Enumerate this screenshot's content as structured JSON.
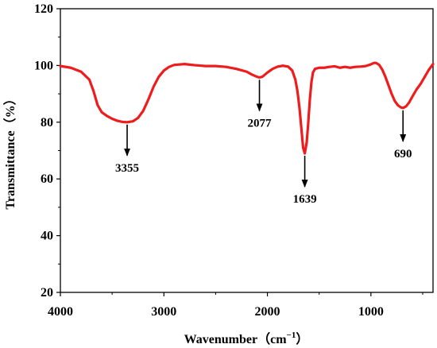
{
  "chart_data": {
    "type": "line",
    "title": "",
    "xlabel": "Wavenumber（cm",
    "xlabel_sup": "−1",
    "xlabel_close": "）",
    "ylabel": "Transmittance（%）",
    "xlim": [
      4000,
      400
    ],
    "ylim": [
      20,
      120
    ],
    "x_ticks": [
      "4000",
      "3000",
      "2000",
      "1000"
    ],
    "y_ticks": [
      "20",
      "40",
      "60",
      "80",
      "100",
      "120"
    ],
    "grid": false,
    "legend": "none",
    "series": [
      {
        "color": "#ee1c1c",
        "points": [
          [
            4000,
            99.8
          ],
          [
            3900,
            99.2
          ],
          [
            3800,
            97.8
          ],
          [
            3720,
            95
          ],
          [
            3680,
            91
          ],
          [
            3640,
            86
          ],
          [
            3600,
            83.5
          ],
          [
            3550,
            82.2
          ],
          [
            3500,
            81.2
          ],
          [
            3450,
            80.5
          ],
          [
            3400,
            80.1
          ],
          [
            3355,
            80.0
          ],
          [
            3300,
            80.3
          ],
          [
            3250,
            81.5
          ],
          [
            3200,
            84
          ],
          [
            3150,
            88
          ],
          [
            3100,
            92.5
          ],
          [
            3050,
            96
          ],
          [
            3000,
            98.2
          ],
          [
            2950,
            99.5
          ],
          [
            2900,
            100.2
          ],
          [
            2800,
            100.5
          ],
          [
            2700,
            100.1
          ],
          [
            2600,
            99.8
          ],
          [
            2500,
            99.8
          ],
          [
            2400,
            99.5
          ],
          [
            2300,
            98.8
          ],
          [
            2200,
            97.8
          ],
          [
            2150,
            96.8
          ],
          [
            2100,
            96.0
          ],
          [
            2077,
            95.8
          ],
          [
            2050,
            96.0
          ],
          [
            2000,
            97.5
          ],
          [
            1950,
            98.8
          ],
          [
            1900,
            99.6
          ],
          [
            1850,
            99.9
          ],
          [
            1800,
            99.6
          ],
          [
            1760,
            98.2
          ],
          [
            1730,
            95
          ],
          [
            1710,
            91
          ],
          [
            1690,
            85
          ],
          [
            1670,
            77
          ],
          [
            1655,
            71
          ],
          [
            1639,
            69.0
          ],
          [
            1620,
            73
          ],
          [
            1605,
            80
          ],
          [
            1590,
            88
          ],
          [
            1575,
            94
          ],
          [
            1560,
            97.5
          ],
          [
            1540,
            98.8
          ],
          [
            1500,
            99.2
          ],
          [
            1450,
            99.2
          ],
          [
            1400,
            99.5
          ],
          [
            1350,
            99.7
          ],
          [
            1300,
            99.2
          ],
          [
            1250,
            99.5
          ],
          [
            1200,
            99.2
          ],
          [
            1150,
            99.5
          ],
          [
            1100,
            99.6
          ],
          [
            1050,
            99.8
          ],
          [
            1000,
            100.4
          ],
          [
            970,
            100.9
          ],
          [
            950,
            100.9
          ],
          [
            920,
            100.2
          ],
          [
            890,
            98.5
          ],
          [
            860,
            96
          ],
          [
            830,
            93
          ],
          [
            800,
            90
          ],
          [
            770,
            87.5
          ],
          [
            740,
            86
          ],
          [
            710,
            85.2
          ],
          [
            690,
            85.0
          ],
          [
            660,
            85.6
          ],
          [
            630,
            87
          ],
          [
            600,
            89
          ],
          [
            560,
            91.5
          ],
          [
            520,
            93.5
          ],
          [
            480,
            96
          ],
          [
            440,
            98.5
          ],
          [
            400,
            100.5
          ]
        ]
      }
    ],
    "annotations": [
      {
        "text": "3355",
        "x": 3355,
        "y": 80.0
      },
      {
        "text": "2077",
        "x": 2077,
        "y": 95.8
      },
      {
        "text": "1639",
        "x": 1639,
        "y": 69.0
      },
      {
        "text": "690",
        "x": 690,
        "y": 85.0
      }
    ]
  }
}
